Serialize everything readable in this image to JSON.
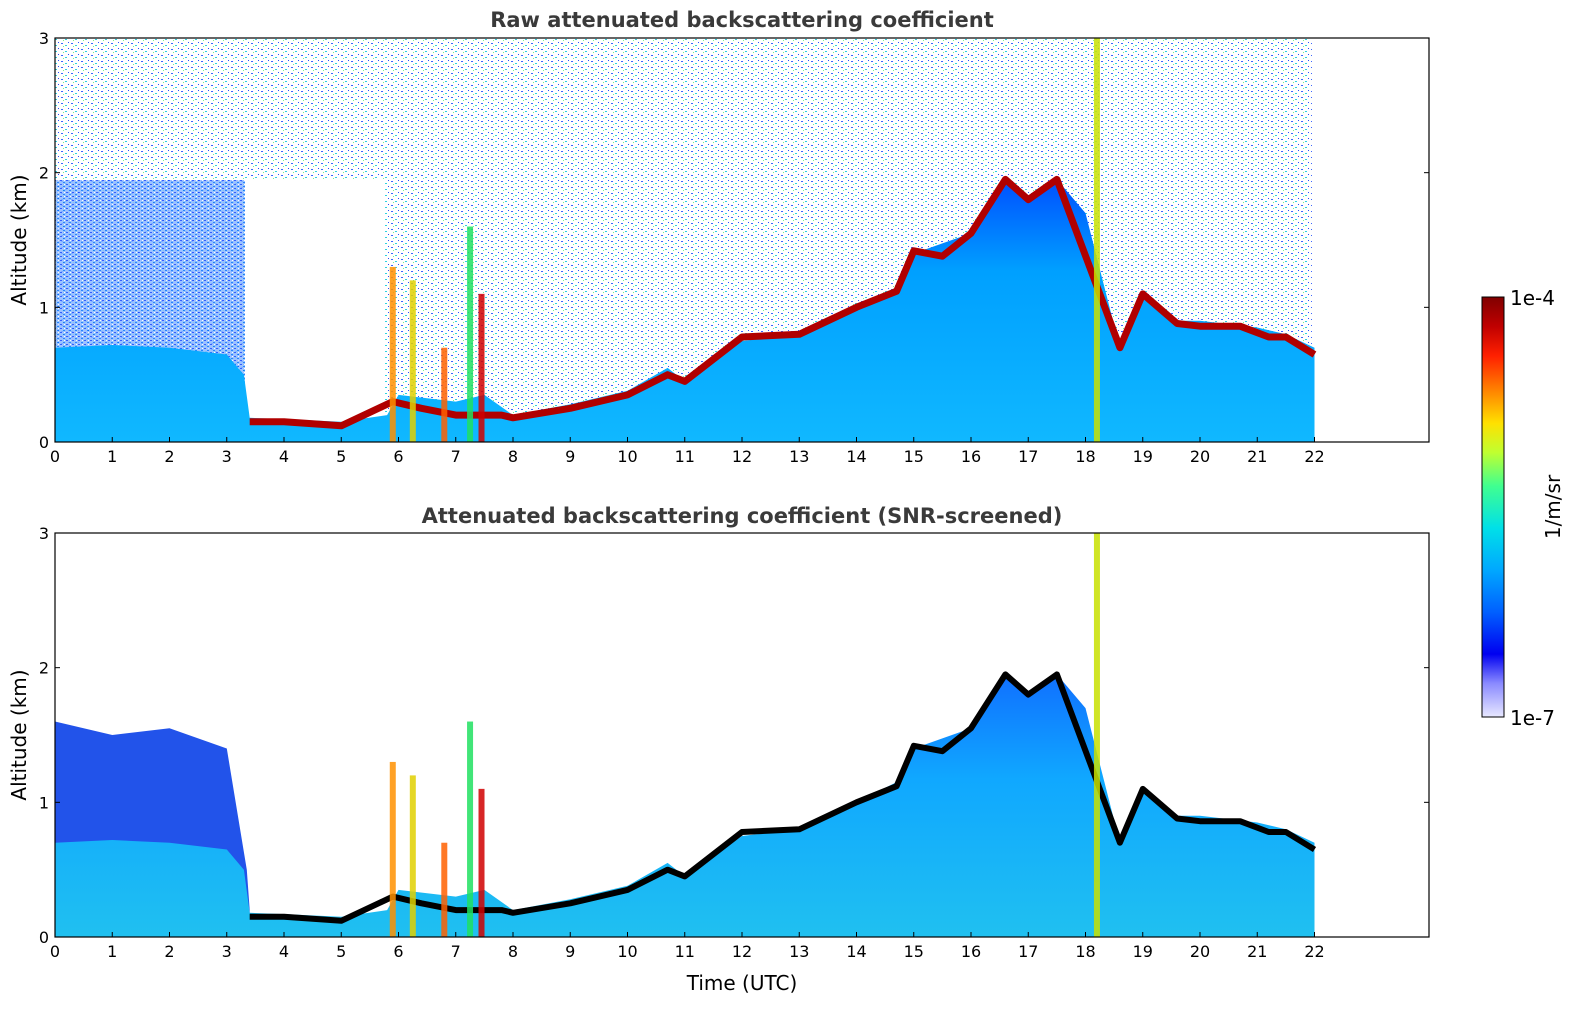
{
  "chart_data": [
    {
      "type": "heatmap",
      "title": "Raw attenuated backscattering coefficient",
      "xlabel": "",
      "ylabel": "Altitude (km)",
      "xlim": [
        0,
        24
      ],
      "ylim": [
        0,
        3
      ],
      "xticks": [
        "0",
        "1",
        "2",
        "3",
        "4",
        "5",
        "6",
        "7",
        "8",
        "9",
        "10",
        "11",
        "12",
        "13",
        "14",
        "15",
        "16",
        "17",
        "18",
        "19",
        "20",
        "21",
        "22"
      ],
      "yticks": [
        "0",
        "1",
        "2",
        "3"
      ],
      "data_end_hour": 22,
      "boundary_layer_top_km": [
        [
          0,
          0.7
        ],
        [
          1,
          0.72
        ],
        [
          2,
          0.7
        ],
        [
          3,
          0.65
        ],
        [
          3.3,
          0.5
        ],
        [
          3.4,
          0.18
        ],
        [
          4,
          0.17
        ],
        [
          5,
          0.15
        ],
        [
          5.8,
          0.2
        ],
        [
          6,
          0.35
        ],
        [
          7,
          0.3
        ],
        [
          7.5,
          0.35
        ],
        [
          8,
          0.2
        ],
        [
          9,
          0.28
        ],
        [
          10,
          0.38
        ],
        [
          10.7,
          0.55
        ],
        [
          11,
          0.45
        ],
        [
          12,
          0.75
        ],
        [
          13,
          0.8
        ],
        [
          14,
          1.0
        ],
        [
          14.7,
          1.15
        ],
        [
          15,
          1.4
        ],
        [
          16,
          1.55
        ],
        [
          16.6,
          1.95
        ],
        [
          17,
          1.8
        ],
        [
          17.5,
          1.95
        ],
        [
          18,
          1.7
        ],
        [
          18.6,
          0.7
        ],
        [
          19,
          1.1
        ],
        [
          19.6,
          0.9
        ],
        [
          20,
          0.9
        ],
        [
          21,
          0.85
        ],
        [
          21.5,
          0.8
        ],
        [
          22,
          0.7
        ]
      ],
      "cloud_layer_km": [
        [
          3.4,
          0.15
        ],
        [
          4,
          0.15
        ],
        [
          5,
          0.12
        ],
        [
          5.9,
          0.3
        ],
        [
          6.4,
          0.25
        ],
        [
          7,
          0.2
        ],
        [
          7.8,
          0.2
        ],
        [
          8,
          0.18
        ],
        [
          9,
          0.25
        ],
        [
          10,
          0.35
        ],
        [
          10.7,
          0.5
        ],
        [
          11,
          0.45
        ],
        [
          12,
          0.78
        ],
        [
          13,
          0.8
        ],
        [
          14,
          1.0
        ],
        [
          14.7,
          1.12
        ],
        [
          15,
          1.42
        ],
        [
          15.5,
          1.38
        ],
        [
          16,
          1.55
        ],
        [
          16.6,
          1.95
        ],
        [
          17,
          1.8
        ],
        [
          17.5,
          1.95
        ],
        [
          18.6,
          0.7
        ],
        [
          19,
          1.1
        ],
        [
          19.6,
          0.88
        ],
        [
          20,
          0.86
        ],
        [
          20.7,
          0.86
        ],
        [
          21.2,
          0.78
        ],
        [
          21.5,
          0.78
        ],
        [
          22,
          0.65
        ]
      ]
    },
    {
      "type": "heatmap",
      "title": "Attenuated backscattering coefficient (SNR-screened)",
      "xlabel": "Time (UTC)",
      "ylabel": "Altitude (km)",
      "xlim": [
        0,
        24
      ],
      "ylim": [
        0,
        3
      ],
      "xticks": [
        "0",
        "1",
        "2",
        "3",
        "4",
        "5",
        "6",
        "7",
        "8",
        "9",
        "10",
        "11",
        "12",
        "13",
        "14",
        "15",
        "16",
        "17",
        "18",
        "19",
        "20",
        "21",
        "22"
      ],
      "yticks": [
        "0",
        "1",
        "2",
        "3"
      ],
      "data_end_hour": 22
    }
  ],
  "colorbar": {
    "max_label": "1e-4",
    "min_label": "1e-7",
    "unit_label": "1/m/sr",
    "colormap": [
      "#e8e8ff",
      "#8a8aff",
      "#0000f0",
      "#0060ff",
      "#00a8ff",
      "#00e0e8",
      "#40ff90",
      "#c0ff30",
      "#ffe000",
      "#ff8000",
      "#ff2000",
      "#c00000",
      "#800000"
    ]
  }
}
